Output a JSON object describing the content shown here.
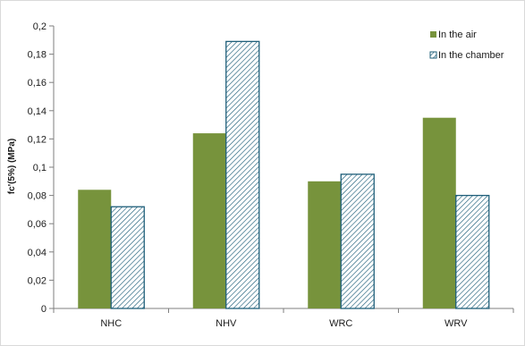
{
  "chart_data": {
    "type": "bar",
    "title": "",
    "xlabel": "",
    "ylabel": "fc'(5%) (MPa)",
    "ylim": [
      0,
      0.2
    ],
    "y_ticks": [
      "0",
      "0,02",
      "0,04",
      "0,06",
      "0,08",
      "0,1",
      "0,12",
      "0,14",
      "0,16",
      "0,18",
      "0,2"
    ],
    "y_tick_step": 0.02,
    "categories": [
      "NHC",
      "NHV",
      "WRC",
      "WRV"
    ],
    "series": [
      {
        "name": "In the air",
        "values": [
          0.084,
          0.124,
          0.09,
          0.135
        ],
        "color": "#77933c",
        "fill": "solid"
      },
      {
        "name": "In the chamber",
        "values": [
          0.072,
          0.189,
          0.095,
          0.08
        ],
        "color": "#1f5f7a",
        "fill": "hatched"
      }
    ],
    "grid": false,
    "legend_position": "top-right",
    "axis_color": "#7f7f7f"
  }
}
